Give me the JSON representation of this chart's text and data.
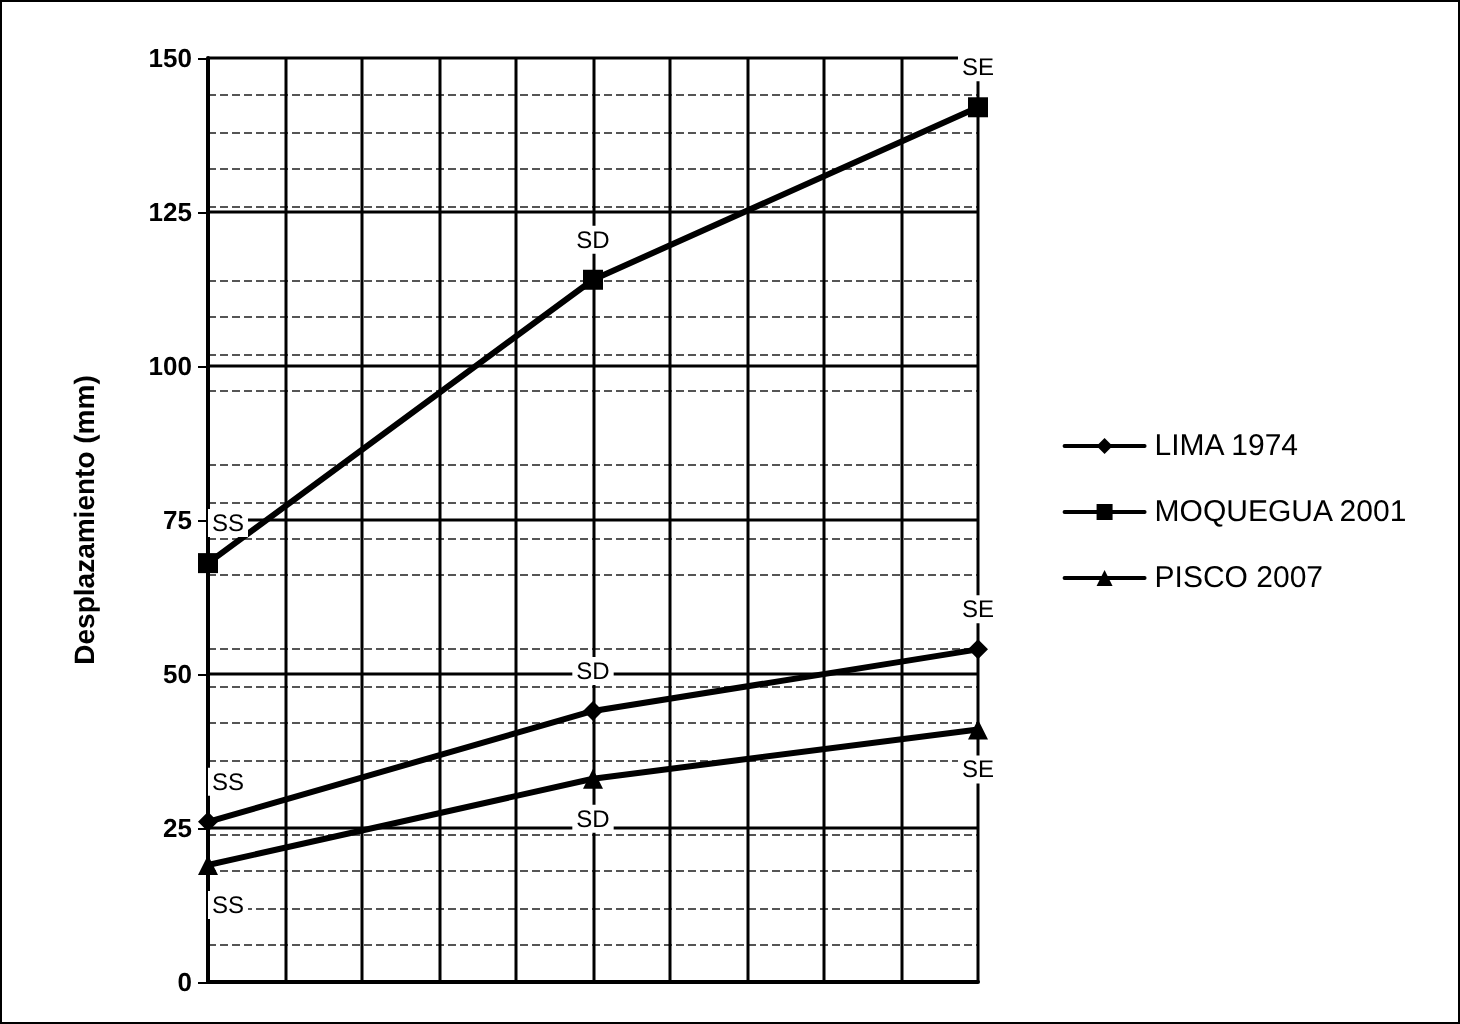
{
  "chart_data": {
    "type": "line",
    "ylabel": "Desplazamiento (mm)",
    "categories": [
      null,
      null,
      null
    ],
    "ylim": [
      0,
      150
    ],
    "yticks": [
      0,
      25,
      50,
      75,
      100,
      125,
      150
    ],
    "tick_labels": "y",
    "grid": true,
    "legend": "right",
    "line_style": "solid",
    "series": [
      {
        "name": "LIMA 1974",
        "color": "#000000",
        "marker": "diamond",
        "values": [
          26,
          44,
          54
        ],
        "value_labels": [
          "SS",
          "SD",
          "SE"
        ]
      },
      {
        "name": "MOQUEGUA 2001",
        "color": "#000000",
        "marker": "square",
        "values": [
          68,
          114,
          142
        ],
        "value_labels": [
          "SS",
          "SD",
          "SE"
        ]
      },
      {
        "name": "PISCO 2007",
        "color": "#000000",
        "marker": "triangle",
        "values": [
          19,
          33,
          41
        ],
        "value_labels": [
          "SS",
          "SD",
          "SE"
        ]
      }
    ]
  }
}
